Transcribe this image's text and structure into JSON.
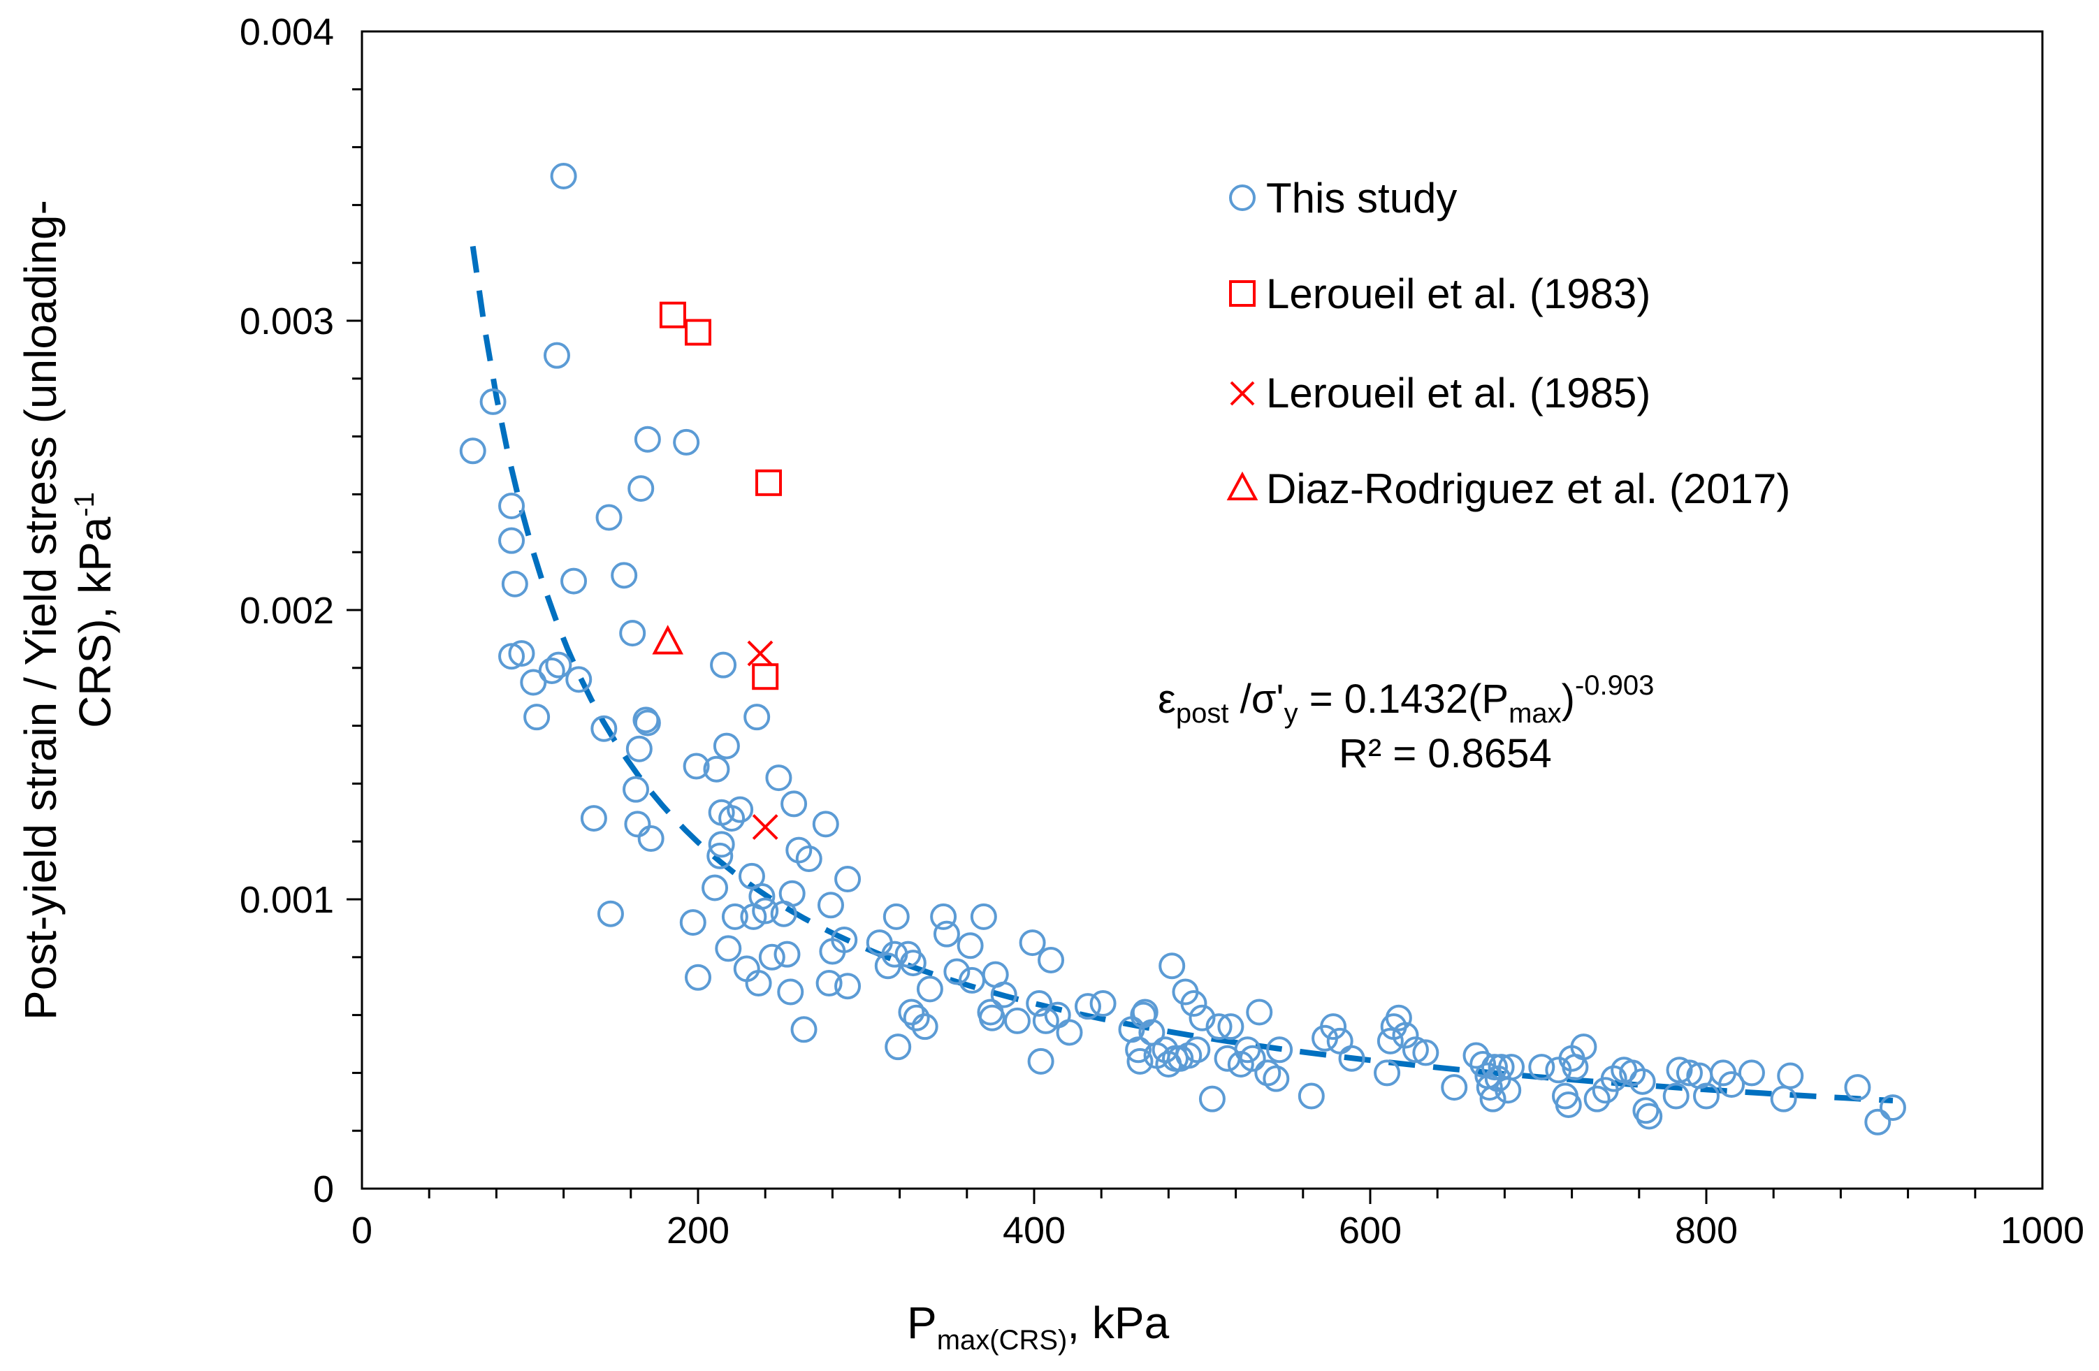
{
  "chart_data": {
    "type": "scatter",
    "xlabel": {
      "main": "P",
      "sub": "max(CRS)",
      "suffix": ", kPa"
    },
    "ylabel": {
      "line1": "Post-yield strain / Yield stress (unloading-",
      "line2_main": "CRS), kPa",
      "line2_sup": "-1"
    },
    "xlim": [
      0,
      1000
    ],
    "ylim": [
      0,
      0.004
    ],
    "x_ticks": [
      0,
      200,
      400,
      600,
      800,
      1000
    ],
    "x_tick_labels": [
      "0",
      "200",
      "400",
      "600",
      "800",
      "1000"
    ],
    "y_ticks": [
      0,
      0.001,
      0.002,
      0.003,
      0.004
    ],
    "y_tick_labels": [
      "0",
      "0.001",
      "0.002",
      "0.003",
      "0.004"
    ],
    "x_minor_step": 40,
    "y_minor_step": 0.0002,
    "legend_position": "top-right",
    "colors": {
      "this_study": "#5b9bd5",
      "literature": "#ff0000",
      "trend": "#0070c0"
    },
    "series": [
      {
        "name": "This study",
        "marker": "circle",
        "color": "#5b9bd5",
        "points": [
          [
            66,
            0.00255
          ],
          [
            78,
            0.00272
          ],
          [
            89,
            0.00236
          ],
          [
            89,
            0.00224
          ],
          [
            91,
            0.00209
          ],
          [
            89,
            0.00184
          ],
          [
            95,
            0.00185
          ],
          [
            102,
            0.00175
          ],
          [
            104,
            0.00163
          ],
          [
            113,
            0.00179
          ],
          [
            117,
            0.00181
          ],
          [
            116,
            0.00288
          ],
          [
            120,
            0.0035
          ],
          [
            126,
            0.0021
          ],
          [
            129,
            0.00176
          ],
          [
            138,
            0.00128
          ],
          [
            144,
            0.00159
          ],
          [
            148,
            0.00095
          ],
          [
            147,
            0.00232
          ],
          [
            156,
            0.00212
          ],
          [
            161,
            0.00192
          ],
          [
            163,
            0.00138
          ],
          [
            164,
            0.00126
          ],
          [
            165,
            0.00152
          ],
          [
            166,
            0.00242
          ],
          [
            169,
            0.00162
          ],
          [
            170,
            0.00161
          ],
          [
            170,
            0.00259
          ],
          [
            172,
            0.00121
          ],
          [
            193,
            0.00258
          ],
          [
            197,
            0.00092
          ],
          [
            199,
            0.00146
          ],
          [
            200,
            0.00073
          ],
          [
            210,
            0.00104
          ],
          [
            211,
            0.00145
          ],
          [
            213,
            0.00115
          ],
          [
            214,
            0.00119
          ],
          [
            214,
            0.0013
          ],
          [
            215,
            0.00181
          ],
          [
            217,
            0.00153
          ],
          [
            218,
            0.00083
          ],
          [
            220,
            0.00128
          ],
          [
            222,
            0.00094
          ],
          [
            225,
            0.00131
          ],
          [
            229,
            0.00076
          ],
          [
            232,
            0.00108
          ],
          [
            233,
            0.00094
          ],
          [
            235,
            0.00163
          ],
          [
            236,
            0.00071
          ],
          [
            238,
            0.00101
          ],
          [
            240,
            0.00096
          ],
          [
            244,
            0.0008
          ],
          [
            248,
            0.00142
          ],
          [
            251,
            0.00095
          ],
          [
            253,
            0.00081
          ],
          [
            255,
            0.00068
          ],
          [
            256,
            0.00102
          ],
          [
            257,
            0.00133
          ],
          [
            260,
            0.00117
          ],
          [
            263,
            0.00055
          ],
          [
            266,
            0.00114
          ],
          [
            276,
            0.00126
          ],
          [
            278,
            0.00071
          ],
          [
            279,
            0.00098
          ],
          [
            280,
            0.00082
          ],
          [
            287,
            0.00086
          ],
          [
            289,
            0.0007
          ],
          [
            289,
            0.00107
          ],
          [
            308,
            0.00085
          ],
          [
            313,
            0.00077
          ],
          [
            317,
            0.00081
          ],
          [
            318,
            0.00094
          ],
          [
            319,
            0.00049
          ],
          [
            325,
            0.00081
          ],
          [
            327,
            0.00061
          ],
          [
            328,
            0.00078
          ],
          [
            330,
            0.00059
          ],
          [
            335,
            0.00056
          ],
          [
            338,
            0.00069
          ],
          [
            346,
            0.00094
          ],
          [
            348,
            0.00088
          ],
          [
            354,
            0.00075
          ],
          [
            362,
            0.00084
          ],
          [
            363,
            0.00072
          ],
          [
            370,
            0.00094
          ],
          [
            374,
            0.00061
          ],
          [
            375,
            0.00059
          ],
          [
            377,
            0.00074
          ],
          [
            382,
            0.00067
          ],
          [
            390,
            0.00058
          ],
          [
            399,
            0.00085
          ],
          [
            403,
            0.00064
          ],
          [
            404,
            0.00044
          ],
          [
            407,
            0.00058
          ],
          [
            410,
            0.00079
          ],
          [
            414,
            0.0006
          ],
          [
            421,
            0.00054
          ],
          [
            432,
            0.00063
          ],
          [
            441,
            0.00064
          ],
          [
            458,
            0.00055
          ],
          [
            462,
            0.00048
          ],
          [
            463,
            0.00044
          ],
          [
            465,
            0.0006
          ],
          [
            466,
            0.00061
          ],
          [
            470,
            0.00054
          ],
          [
            473,
            0.00046
          ],
          [
            478,
            0.00048
          ],
          [
            480,
            0.00043
          ],
          [
            482,
            0.00077
          ],
          [
            484,
            0.00045
          ],
          [
            487,
            0.00045
          ],
          [
            490,
            0.00068
          ],
          [
            492,
            0.00046
          ],
          [
            495,
            0.00064
          ],
          [
            497,
            0.00048
          ],
          [
            500,
            0.00059
          ],
          [
            506,
            0.00031
          ],
          [
            510,
            0.00056
          ],
          [
            515,
            0.00045
          ],
          [
            517,
            0.00056
          ],
          [
            523,
            0.00043
          ],
          [
            527,
            0.00048
          ],
          [
            530,
            0.00045
          ],
          [
            534,
            0.00061
          ],
          [
            539,
            0.0004
          ],
          [
            544,
            0.00038
          ],
          [
            546,
            0.00048
          ],
          [
            565,
            0.00032
          ],
          [
            573,
            0.00052
          ],
          [
            578,
            0.00056
          ],
          [
            582,
            0.00051
          ],
          [
            589,
            0.00045
          ],
          [
            610,
            0.0004
          ],
          [
            612,
            0.00051
          ],
          [
            614,
            0.00056
          ],
          [
            617,
            0.00059
          ],
          [
            621,
            0.00053
          ],
          [
            627,
            0.00048
          ],
          [
            633,
            0.00047
          ],
          [
            650,
            0.00035
          ],
          [
            663,
            0.00046
          ],
          [
            667,
            0.00043
          ],
          [
            670,
            0.00039
          ],
          [
            671,
            0.00035
          ],
          [
            673,
            0.00031
          ],
          [
            674,
            0.00042
          ],
          [
            676,
            0.00038
          ],
          [
            678,
            0.00042
          ],
          [
            682,
            0.00034
          ],
          [
            684,
            0.00042
          ],
          [
            702,
            0.00042
          ],
          [
            712,
            0.00041
          ],
          [
            716,
            0.00032
          ],
          [
            718,
            0.00029
          ],
          [
            720,
            0.00045
          ],
          [
            722,
            0.00042
          ],
          [
            727,
            0.00049
          ],
          [
            735,
            0.00031
          ],
          [
            740,
            0.00034
          ],
          [
            745,
            0.00038
          ],
          [
            751,
            0.00041
          ],
          [
            756,
            0.0004
          ],
          [
            762,
            0.00037
          ],
          [
            764,
            0.00027
          ],
          [
            766,
            0.00025
          ],
          [
            782,
            0.00032
          ],
          [
            784,
            0.00041
          ],
          [
            790,
            0.0004
          ],
          [
            796,
            0.00039
          ],
          [
            800,
            0.00032
          ],
          [
            810,
            0.0004
          ],
          [
            815,
            0.00036
          ],
          [
            827,
            0.0004
          ],
          [
            846,
            0.00031
          ],
          [
            850,
            0.00039
          ],
          [
            890,
            0.00035
          ],
          [
            902,
            0.00023
          ],
          [
            911,
            0.00028
          ]
        ]
      },
      {
        "name": "Leroueil et al. (1983)",
        "marker": "square",
        "color": "#ff0000",
        "points": [
          [
            185,
            0.00302
          ],
          [
            200,
            0.00296
          ],
          [
            242,
            0.00244
          ],
          [
            240,
            0.00177
          ]
        ]
      },
      {
        "name": "Leroueil et al. (1985)",
        "marker": "x",
        "color": "#ff0000",
        "points": [
          [
            237,
            0.00185
          ],
          [
            240,
            0.00125
          ]
        ]
      },
      {
        "name": "Diaz-Rodriguez et al. (2017)",
        "marker": "triangle",
        "color": "#ff0000",
        "points": [
          [
            182,
            0.00189
          ]
        ]
      }
    ],
    "trendline": {
      "type": "power",
      "coefficient": 0.1432,
      "exponent": -0.903,
      "x_range": [
        66,
        911
      ],
      "style": "dashed",
      "color": "#0070c0"
    },
    "annotation": {
      "eq_symbol": "ε",
      "eq_sub_post": "post",
      "eq_mid": " /σ'",
      "eq_sub_y": "y",
      "eq_coef": " = 0.1432(P",
      "eq_sub_max": "max",
      "eq_close": ")",
      "eq_sup": "-0.903",
      "r2": "R² = 0.8654"
    }
  }
}
